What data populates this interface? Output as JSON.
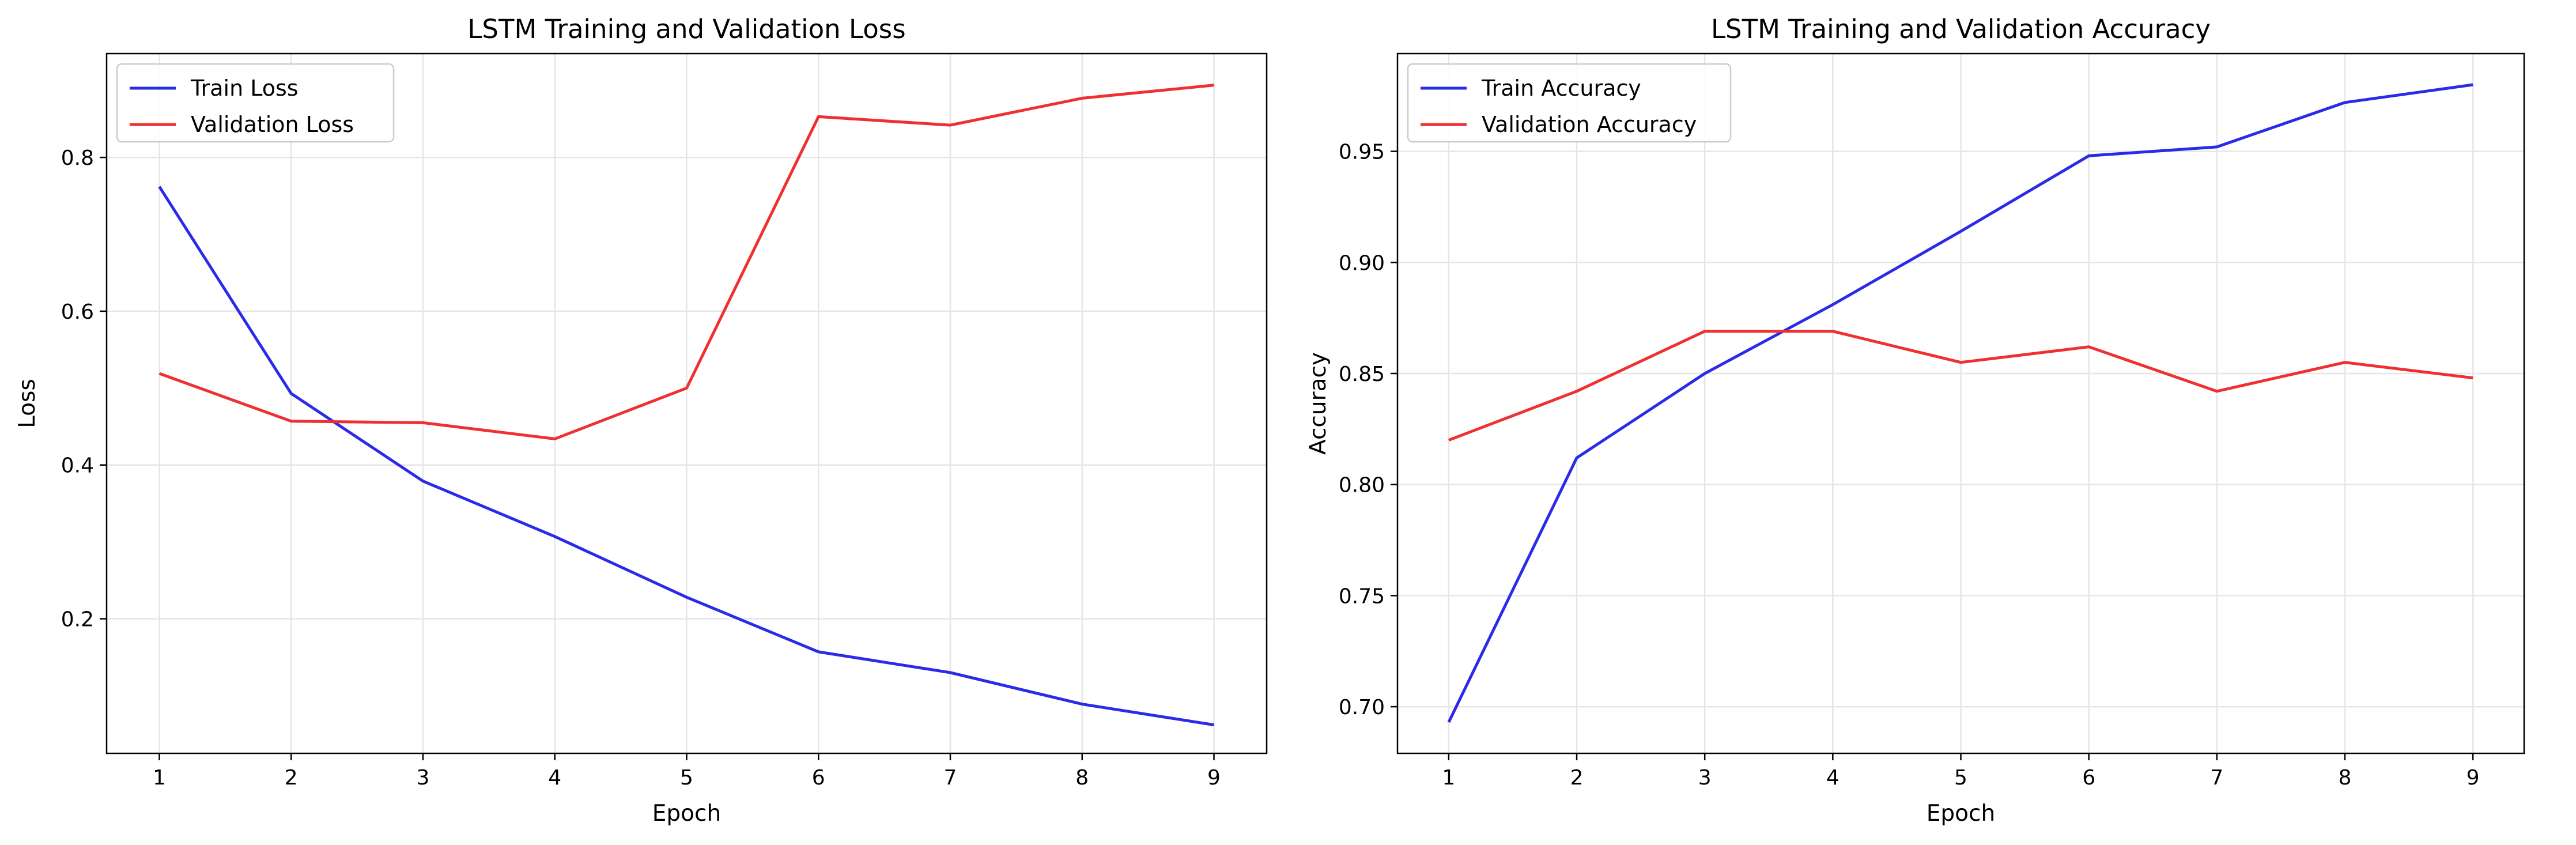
{
  "chart_data": [
    {
      "type": "line",
      "title": "LSTM Training and Validation Loss",
      "xlabel": "Epoch",
      "ylabel": "Loss",
      "x": [
        1,
        2,
        3,
        4,
        5,
        6,
        7,
        8,
        9
      ],
      "xlim": [
        0.6,
        9.4
      ],
      "ylim": [
        0.025,
        0.935
      ],
      "yticks": [
        0.2,
        0.4,
        0.6,
        0.8
      ],
      "ytick_labels": [
        "0.2",
        "0.4",
        "0.6",
        "0.8"
      ],
      "grid": true,
      "legend_position": "upper left",
      "series": [
        {
          "name": "Train Loss",
          "color": "#2a2ae8",
          "values": [
            0.762,
            0.493,
            0.379,
            0.307,
            0.228,
            0.157,
            0.13,
            0.089,
            0.062
          ]
        },
        {
          "name": "Validation Loss",
          "color": "#f03030",
          "values": [
            0.519,
            0.457,
            0.455,
            0.434,
            0.5,
            0.853,
            0.842,
            0.877,
            0.894
          ]
        }
      ]
    },
    {
      "type": "line",
      "title": "LSTM Training and Validation Accuracy",
      "xlabel": "Epoch",
      "ylabel": "Accuracy",
      "x": [
        1,
        2,
        3,
        4,
        5,
        6,
        7,
        8,
        9
      ],
      "xlim": [
        0.6,
        9.4
      ],
      "ylim": [
        0.679,
        0.994
      ],
      "yticks": [
        0.7,
        0.75,
        0.8,
        0.85,
        0.9,
        0.95
      ],
      "ytick_labels": [
        "0.70",
        "0.75",
        "0.80",
        "0.85",
        "0.90",
        "0.95"
      ],
      "grid": true,
      "legend_position": "upper left",
      "series": [
        {
          "name": "Train Accuracy",
          "color": "#2a2ae8",
          "values": [
            0.693,
            0.812,
            0.85,
            0.881,
            0.914,
            0.948,
            0.952,
            0.972,
            0.98
          ]
        },
        {
          "name": "Validation Accuracy",
          "color": "#f03030",
          "values": [
            0.82,
            0.842,
            0.869,
            0.869,
            0.855,
            0.862,
            0.842,
            0.855,
            0.848
          ]
        }
      ]
    }
  ]
}
